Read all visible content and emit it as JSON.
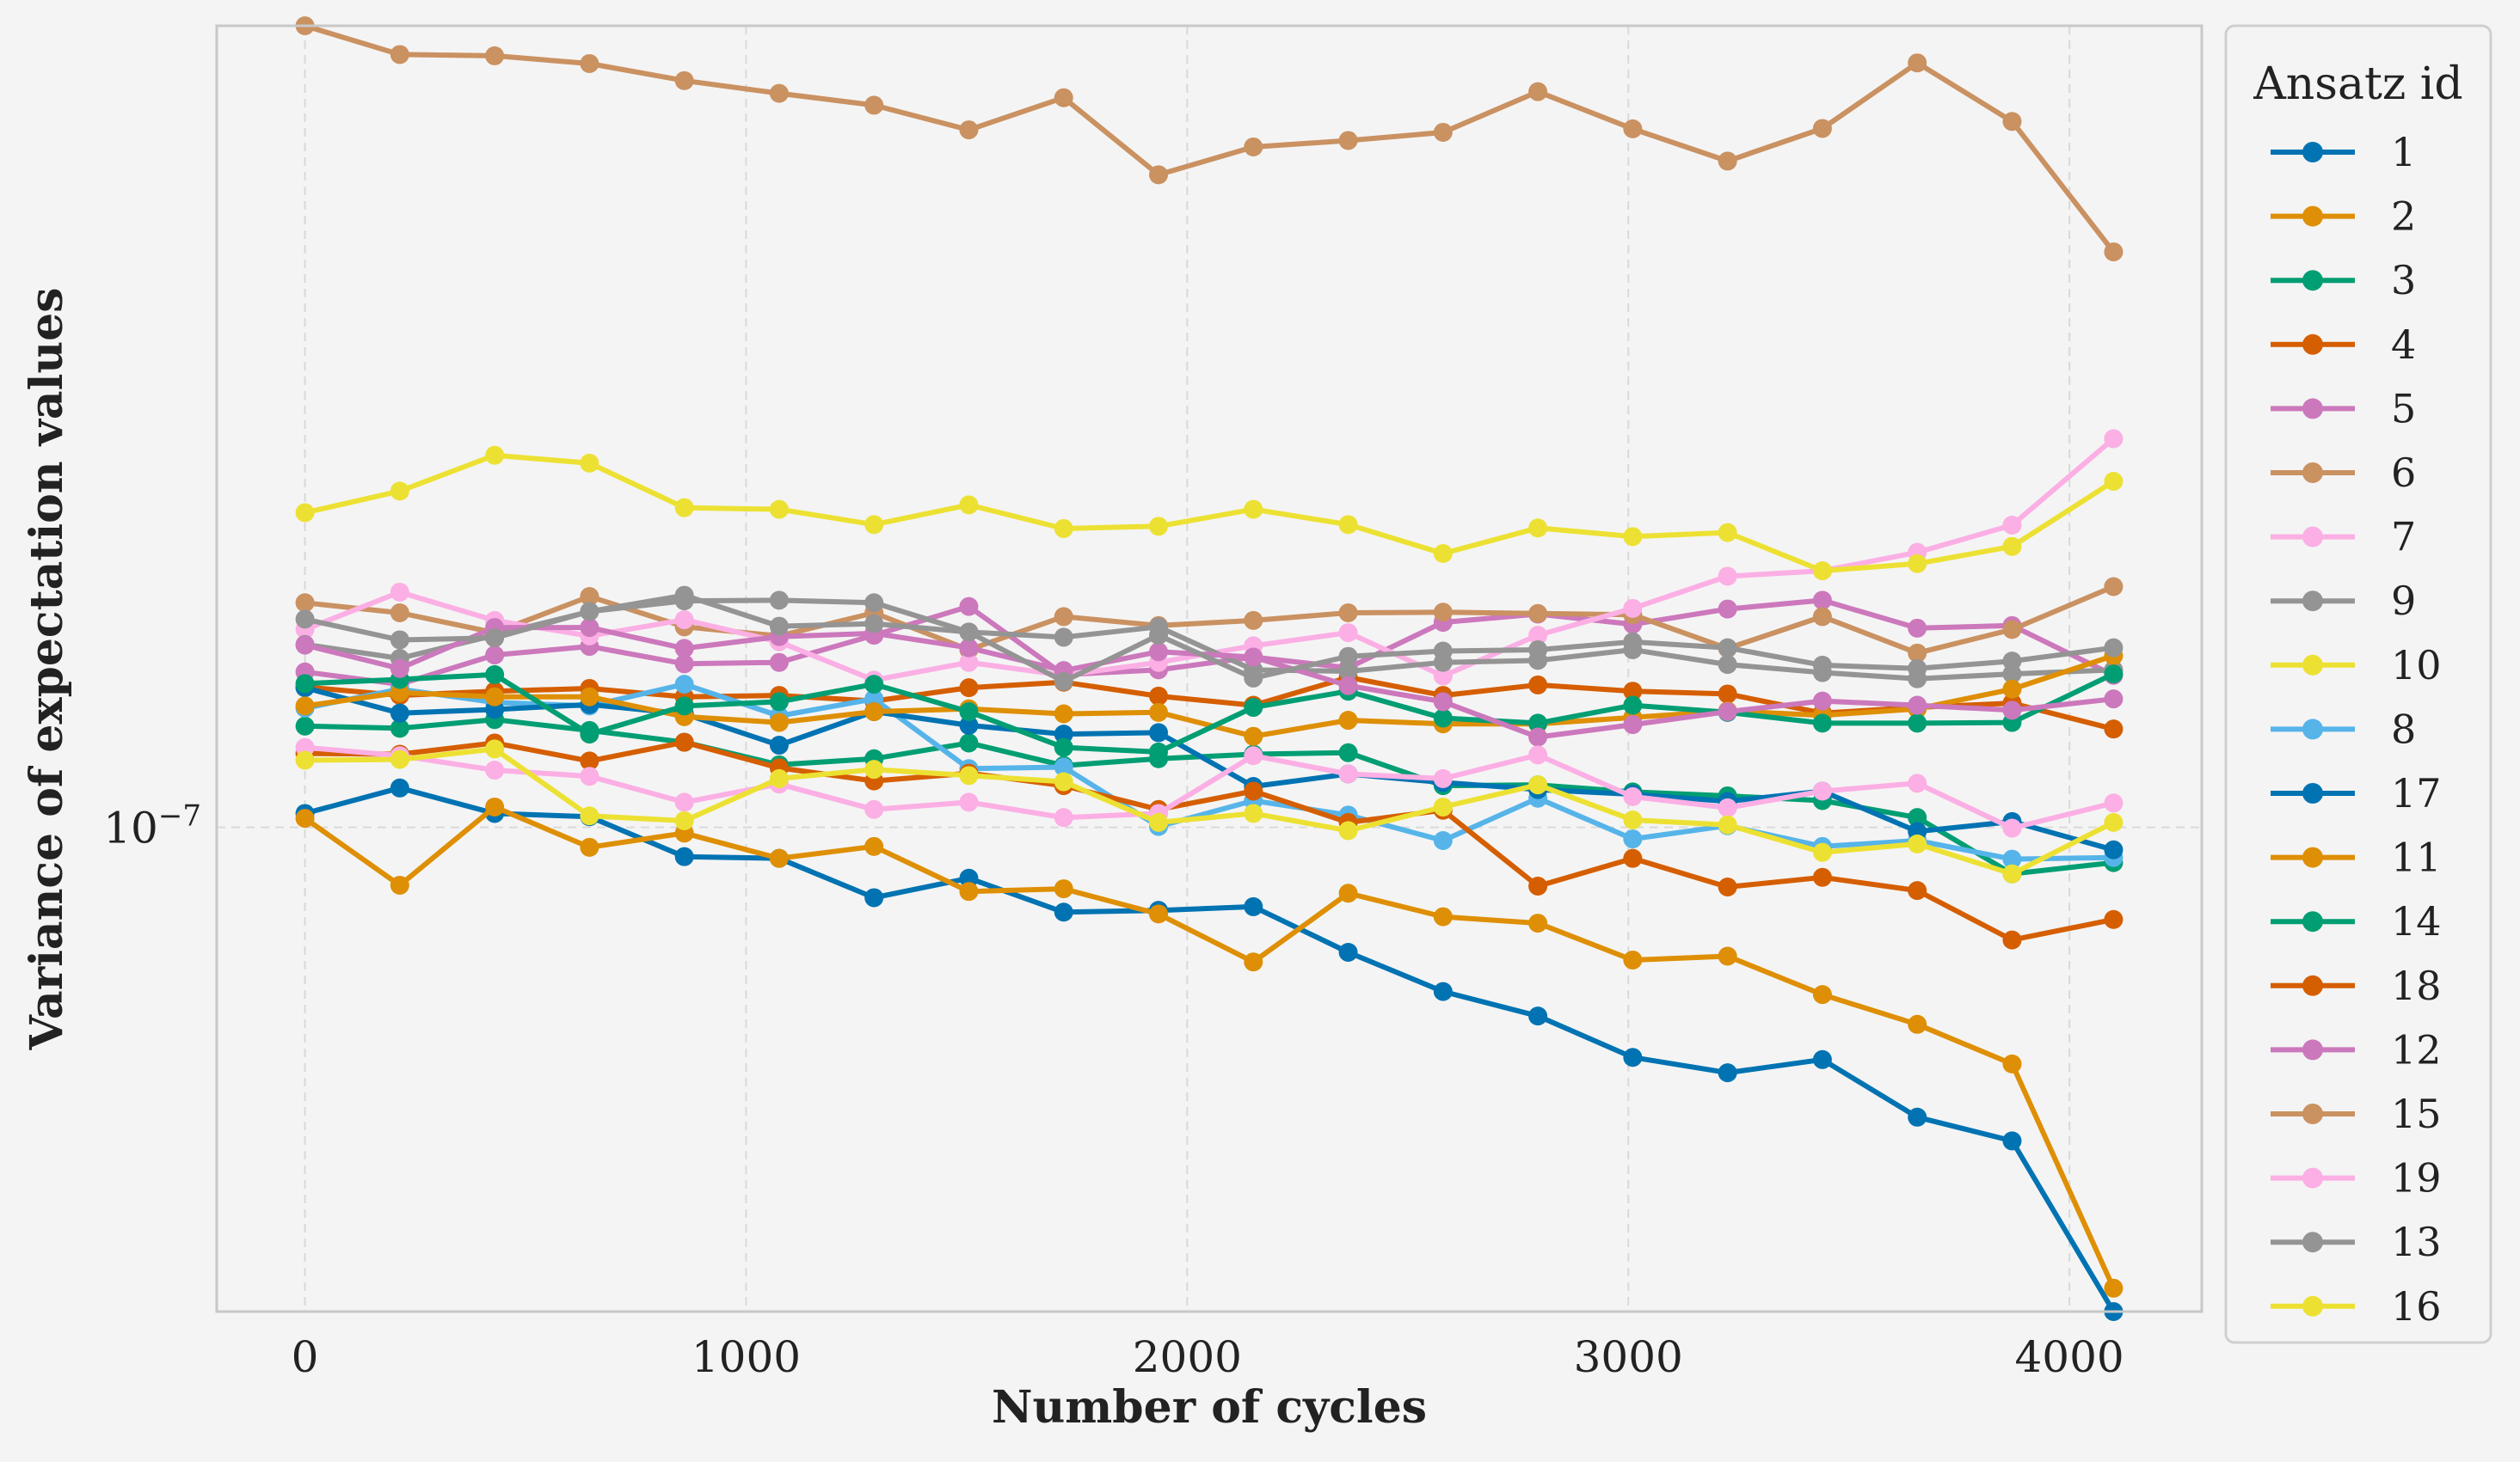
{
  "chart_data": {
    "type": "line",
    "xlabel": "Number of cycles",
    "ylabel": "Variance of expectation values",
    "x_ticks": [
      0,
      1000,
      2000,
      3000,
      4000
    ],
    "y_tick": {
      "value": 1e-07,
      "label_base": "10",
      "label_exp": "−7"
    },
    "xlim": [
      -200,
      4300
    ],
    "ylim": [
      5.55e-08,
      2.65e-07
    ],
    "y_scale": "log",
    "grid": true,
    "legend_title": "Ansatz id",
    "legend_position": "outside right, top",
    "x": [
      0,
      215,
      430,
      645,
      860,
      1075,
      1290,
      1505,
      1720,
      1935,
      2150,
      2365,
      2580,
      2795,
      3010,
      3225,
      3440,
      3655,
      3870,
      4100
    ],
    "series": [
      {
        "name": "1",
        "color": "#0173b2",
        "values": [
          1.017e-07,
          1.049e-07,
          1.017e-07,
          1.013e-07,
          9.65e-08,
          9.63e-08,
          9.18e-08,
          9.4e-08,
          9.02e-08,
          9.04e-08,
          9.08e-08,
          8.59e-08,
          8.19e-08,
          7.95e-08,
          7.56e-08,
          7.42e-08,
          7.54e-08,
          7.03e-08,
          6.83e-08,
          5.55e-08
        ]
      },
      {
        "name": "2",
        "color": "#de8f05",
        "values": [
          1.011e-07,
          9.32e-08,
          1.025e-07,
          9.76e-08,
          9.93e-08,
          9.63e-08,
          9.77e-08,
          9.25e-08,
          9.28e-08,
          9e-08,
          8.49e-08,
          9.23e-08,
          8.97e-08,
          8.9e-08,
          8.51e-08,
          8.55e-08,
          8.16e-08,
          7.87e-08,
          7.5e-08,
          5.71e-08
        ]
      },
      {
        "name": "3",
        "color": "#029e73",
        "values": [
          1.131e-07,
          1.128e-07,
          1.14e-07,
          1.125e-07,
          1.109e-07,
          1.079e-07,
          1.087e-07,
          1.108e-07,
          1.078e-07,
          1.087e-07,
          1.093e-07,
          1.095e-07,
          1.052e-07,
          1.053e-07,
          1.044e-07,
          1.039e-07,
          1.033e-07,
          1.012e-07,
          9.45e-08,
          9.58e-08
        ]
      },
      {
        "name": "4",
        "color": "#d55e00",
        "values": [
          1.186e-07,
          1.174e-07,
          1.18e-07,
          1.184e-07,
          1.172e-07,
          1.174e-07,
          1.166e-07,
          1.185e-07,
          1.193e-07,
          1.173e-07,
          1.16e-07,
          1.2e-07,
          1.174e-07,
          1.189e-07,
          1.18e-07,
          1.176e-07,
          1.149e-07,
          1.157e-07,
          1.163e-07,
          1.127e-07
        ]
      },
      {
        "name": "5",
        "color": "#cc78bc",
        "values": [
          1.208e-07,
          1.19e-07,
          1.233e-07,
          1.246e-07,
          1.22e-07,
          1.222e-07,
          1.263e-07,
          1.308e-07,
          1.204e-07,
          1.211e-07,
          1.23e-07,
          1.214e-07,
          1.283e-07,
          1.296e-07,
          1.28e-07,
          1.304e-07,
          1.318e-07,
          1.274e-07,
          1.278e-07,
          1.203e-07
        ]
      },
      {
        "name": "6",
        "color": "#ca9161",
        "values": [
          1.314e-07,
          1.298e-07,
          1.267e-07,
          1.324e-07,
          1.276e-07,
          1.262e-07,
          1.298e-07,
          1.241e-07,
          1.292e-07,
          1.278e-07,
          1.286e-07,
          1.298e-07,
          1.299e-07,
          1.297e-07,
          1.295e-07,
          1.243e-07,
          1.292e-07,
          1.236e-07,
          1.272e-07,
          1.34e-07
        ]
      },
      {
        "name": "7",
        "color": "#fbafe4",
        "values": [
          1.272e-07,
          1.331e-07,
          1.286e-07,
          1.262e-07,
          1.287e-07,
          1.253e-07,
          1.196e-07,
          1.222e-07,
          1.203e-07,
          1.222e-07,
          1.247e-07,
          1.267e-07,
          1.202e-07,
          1.263e-07,
          1.305e-07,
          1.357e-07,
          1.366e-07,
          1.397e-07,
          1.444e-07,
          1.604e-07
        ]
      },
      {
        "name": "9",
        "color": "#949494",
        "values": [
          1.249e-07,
          1.228e-07,
          1.263e-07,
          1.3e-07,
          1.317e-07,
          1.318e-07,
          1.314e-07,
          1.268e-07,
          1.26e-07,
          1.276e-07,
          1.211e-07,
          1.209e-07,
          1.222e-07,
          1.225e-07,
          1.241e-07,
          1.219e-07,
          1.207e-07,
          1.198e-07,
          1.205e-07,
          1.211e-07
        ]
      },
      {
        "name": "10",
        "color": "#ece133",
        "values": [
          1.466e-07,
          1.505e-07,
          1.572e-07,
          1.557e-07,
          1.475e-07,
          1.472e-07,
          1.445e-07,
          1.48e-07,
          1.438e-07,
          1.442e-07,
          1.472e-07,
          1.445e-07,
          1.395e-07,
          1.439e-07,
          1.424e-07,
          1.431e-07,
          1.366e-07,
          1.378e-07,
          1.407e-07,
          1.523e-07
        ]
      },
      {
        "name": "8",
        "color": "#56b4e9",
        "values": [
          1.156e-07,
          1.183e-07,
          1.164e-07,
          1.159e-07,
          1.19e-07,
          1.145e-07,
          1.169e-07,
          1.074e-07,
          1.076e-07,
          1.001e-07,
          1.033e-07,
          1.015e-07,
          9.84e-08,
          1.036e-07,
          9.86e-08,
          1.002e-07,
          9.77e-08,
          9.84e-08,
          9.62e-08,
          9.64e-08
        ]
      },
      {
        "name": "17",
        "color": "#0173b2",
        "values": [
          1.185e-07,
          1.149e-07,
          1.154e-07,
          1.161e-07,
          1.148e-07,
          1.105e-07,
          1.151e-07,
          1.132e-07,
          1.12e-07,
          1.122e-07,
          1.051e-07,
          1.067e-07,
          1.056e-07,
          1.047e-07,
          1.041e-07,
          1.032e-07,
          1.045e-07,
          9.95e-08,
          1.007e-07,
          9.73e-08
        ]
      },
      {
        "name": "11",
        "color": "#de8f05",
        "values": [
          1.159e-07,
          1.178e-07,
          1.172e-07,
          1.172e-07,
          1.144e-07,
          1.136e-07,
          1.151e-07,
          1.155e-07,
          1.148e-07,
          1.15e-07,
          1.117e-07,
          1.139e-07,
          1.134e-07,
          1.134e-07,
          1.143e-07,
          1.152e-07,
          1.146e-07,
          1.155e-07,
          1.183e-07,
          1.232e-07
        ]
      },
      {
        "name": "14",
        "color": "#029e73",
        "values": [
          1.191e-07,
          1.197e-07,
          1.204e-07,
          1.12e-07,
          1.159e-07,
          1.165e-07,
          1.19e-07,
          1.151e-07,
          1.102e-07,
          1.096e-07,
          1.157e-07,
          1.18e-07,
          1.142e-07,
          1.135e-07,
          1.16e-07,
          1.15e-07,
          1.135e-07,
          1.135e-07,
          1.136e-07,
          1.205e-07
        ]
      },
      {
        "name": "18",
        "color": "#d55e00",
        "values": [
          1.094e-07,
          1.093e-07,
          1.108e-07,
          1.084e-07,
          1.109e-07,
          1.075e-07,
          1.058e-07,
          1.068e-07,
          1.052e-07,
          1.022e-07,
          1.045e-07,
          1.006e-07,
          1.021e-07,
          9.31e-08,
          9.63e-08,
          9.3e-08,
          9.41e-08,
          9.26e-08,
          8.72e-08,
          8.94e-08
        ]
      },
      {
        "name": "12",
        "color": "#cc78bc",
        "values": [
          1.248e-07,
          1.213e-07,
          1.275e-07,
          1.275e-07,
          1.243e-07,
          1.261e-07,
          1.266e-07,
          1.244e-07,
          1.21e-07,
          1.238e-07,
          1.23e-07,
          1.188e-07,
          1.165e-07,
          1.116e-07,
          1.133e-07,
          1.151e-07,
          1.166e-07,
          1.16e-07,
          1.153e-07,
          1.169e-07
        ]
      },
      {
        "name": "15",
        "color": "#ca9161",
        "values": [
          2.65e-07,
          2.559e-07,
          2.555e-07,
          2.531e-07,
          2.479e-07,
          2.441e-07,
          2.406e-07,
          2.335e-07,
          2.428e-07,
          2.211e-07,
          2.287e-07,
          2.305e-07,
          2.328e-07,
          2.446e-07,
          2.338e-07,
          2.248e-07,
          2.339e-07,
          2.533e-07,
          2.359e-07,
          2.013e-07
        ]
      },
      {
        "name": "19",
        "color": "#fbafe4",
        "values": [
          1.102e-07,
          1.091e-07,
          1.072e-07,
          1.064e-07,
          1.031e-07,
          1.054e-07,
          1.022e-07,
          1.031e-07,
          1.012e-07,
          1.017e-07,
          1.091e-07,
          1.067e-07,
          1.061e-07,
          1.092e-07,
          1.038e-07,
          1.024e-07,
          1.045e-07,
          1.055e-07,
          9.99e-08,
          1.03e-07
        ]
      },
      {
        "name": "13",
        "color": "#949494",
        "values": [
          1.288e-07,
          1.256e-07,
          1.259e-07,
          1.3e-07,
          1.326e-07,
          1.277e-07,
          1.281e-07,
          1.268e-07,
          1.194e-07,
          1.263e-07,
          1.199e-07,
          1.231e-07,
          1.239e-07,
          1.241e-07,
          1.253e-07,
          1.244e-07,
          1.218e-07,
          1.213e-07,
          1.224e-07,
          1.244e-07
        ]
      },
      {
        "name": "16",
        "color": "#ece133",
        "values": [
          1.085e-07,
          1.086e-07,
          1.1e-07,
          1.014e-07,
          1.008e-07,
          1.061e-07,
          1.073e-07,
          1.065e-07,
          1.057e-07,
          1.006e-07,
          1.017e-07,
          9.96e-08,
          1.025e-07,
          1.053e-07,
          1.009e-07,
          1.003e-07,
          9.7e-08,
          9.8e-08,
          9.45e-08,
          1.006e-07
        ]
      }
    ]
  }
}
